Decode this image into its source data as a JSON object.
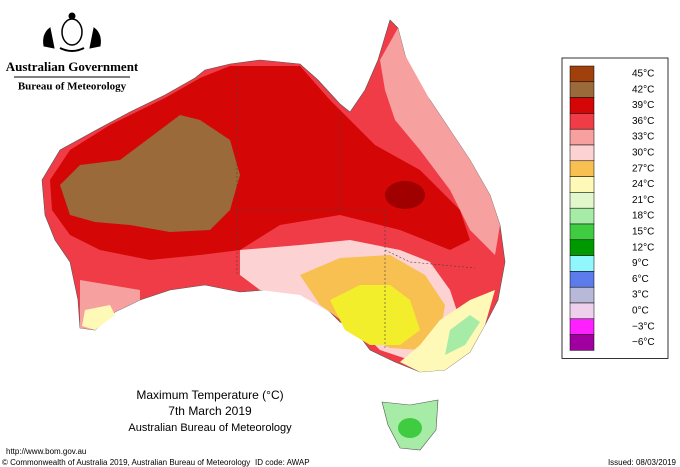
{
  "header": {
    "government": "Australian Government",
    "agency": "Bureau of Meteorology"
  },
  "map": {
    "title": "Maximum Temperature (°C)",
    "date": "7th March 2019",
    "source": "Australian Bureau of Meteorology"
  },
  "legend": [
    {
      "label": "45°C",
      "color": "#a0400c"
    },
    {
      "label": "42°C",
      "color": "#9a6a3a"
    },
    {
      "label": "39°C",
      "color": "#d40606"
    },
    {
      "label": "36°C",
      "color": "#f03c46"
    },
    {
      "label": "33°C",
      "color": "#f7a0a0"
    },
    {
      "label": "30°C",
      "color": "#fcd2d2"
    },
    {
      "label": "27°C",
      "color": "#f8c050"
    },
    {
      "label": "24°C",
      "color": "#fff9b8"
    },
    {
      "label": "21°C",
      "color": "#e2f8cc"
    },
    {
      "label": "18°C",
      "color": "#a6eca6"
    },
    {
      "label": "15°C",
      "color": "#40cc40"
    },
    {
      "label": "12°C",
      "color": "#009a00"
    },
    {
      "label": "9°C",
      "color": "#90f8fc"
    },
    {
      "label": "6°C",
      "color": "#5c7cec"
    },
    {
      "label": "3°C",
      "color": "#b8b8d8"
    },
    {
      "label": "0°C",
      "color": "#ecd0ec"
    },
    {
      "label": "−3°C",
      "color": "#ff20ff"
    },
    {
      "label": "−6°C",
      "color": "#a000a0"
    }
  ],
  "footer": {
    "url": "http://www.bom.gov.au",
    "copyright": "© Commonwealth of Australia 2019, Australian Bureau of Meteorology",
    "id_code": "ID code: AWAP",
    "issued": "Issued: 08/03/2019"
  }
}
